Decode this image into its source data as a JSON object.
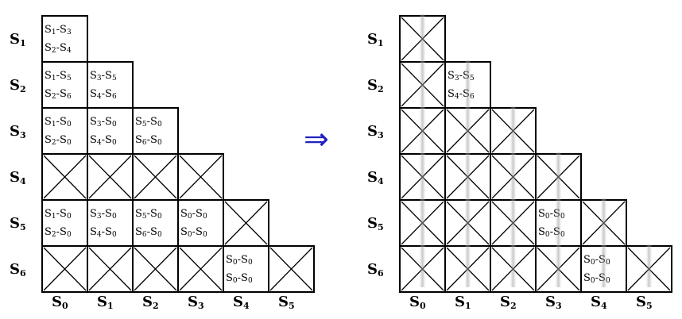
{
  "arrow_symbol": "⇒",
  "left_matrix": {
    "row_labels": [
      [
        "S",
        "1"
      ],
      [
        "S",
        "2"
      ],
      [
        "S",
        "3"
      ],
      [
        "S",
        "4"
      ],
      [
        "S",
        "5"
      ],
      [
        "S",
        "6"
      ]
    ],
    "col_labels": [
      [
        "S",
        "0"
      ],
      [
        "S",
        "1"
      ],
      [
        "S",
        "2"
      ],
      [
        "S",
        "3"
      ],
      [
        "S",
        "4"
      ],
      [
        "S",
        "5"
      ]
    ],
    "cells": [
      [
        {
          "l1": [
            [
              "S",
              "1"
            ],
            [
              "-S",
              "3"
            ]
          ],
          "l2": [
            [
              "S",
              "2"
            ],
            [
              "-S",
              "4"
            ]
          ]
        }
      ],
      [
        {
          "l1": [
            [
              "S",
              "1"
            ],
            [
              "-S",
              "5"
            ]
          ],
          "l2": [
            [
              "S",
              "2"
            ],
            [
              "-S",
              "6"
            ]
          ]
        },
        {
          "l1": [
            [
              "S",
              "3"
            ],
            [
              "-S",
              "5"
            ]
          ],
          "l2": [
            [
              "S",
              "4"
            ],
            [
              "-S",
              "6"
            ]
          ]
        }
      ],
      [
        {
          "l1": [
            [
              "S",
              "1"
            ],
            [
              "-S",
              "0"
            ]
          ],
          "l2": [
            [
              "S",
              "2"
            ],
            [
              "-S",
              "0"
            ]
          ]
        },
        {
          "l1": [
            [
              "S",
              "3"
            ],
            [
              "-S",
              "0"
            ]
          ],
          "l2": [
            [
              "S",
              "4"
            ],
            [
              "-S",
              "0"
            ]
          ]
        },
        {
          "l1": [
            [
              "S",
              "5"
            ],
            [
              "-S",
              "0"
            ]
          ],
          "l2": [
            [
              "S",
              "6"
            ],
            [
              "-S",
              "0"
            ]
          ]
        }
      ],
      [
        "X",
        "X",
        "X",
        "X"
      ],
      [
        {
          "l1": [
            [
              "S",
              "1"
            ],
            [
              "-S",
              "0"
            ]
          ],
          "l2": [
            [
              "S",
              "2"
            ],
            [
              "-S",
              "0"
            ]
          ]
        },
        {
          "l1": [
            [
              "S",
              "3"
            ],
            [
              "-S",
              "0"
            ]
          ],
          "l2": [
            [
              "S",
              "4"
            ],
            [
              "-S",
              "0"
            ]
          ]
        },
        {
          "l1": [
            [
              "S",
              "5"
            ],
            [
              "-S",
              "0"
            ]
          ],
          "l2": [
            [
              "S",
              "6"
            ],
            [
              "-S",
              "0"
            ]
          ]
        },
        {
          "l1": [
            [
              "S",
              "0"
            ],
            [
              "-S",
              "0"
            ]
          ],
          "l2": [
            [
              "S",
              "0"
            ],
            [
              "-S",
              "0"
            ]
          ]
        },
        "X"
      ],
      [
        "X",
        "X",
        "X",
        "X",
        {
          "l1": [
            [
              "S",
              "0"
            ],
            [
              "-S",
              "0"
            ]
          ],
          "l2": [
            [
              "S",
              "0"
            ],
            [
              "-S",
              "0"
            ]
          ]
        },
        "X"
      ]
    ]
  },
  "right_matrix": {
    "row_labels": [
      [
        "S",
        "1"
      ],
      [
        "S",
        "2"
      ],
      [
        "S",
        "3"
      ],
      [
        "S",
        "4"
      ],
      [
        "S",
        "5"
      ],
      [
        "S",
        "6"
      ]
    ],
    "col_labels": [
      [
        "S",
        "0"
      ],
      [
        "S",
        "1"
      ],
      [
        "S",
        "2"
      ],
      [
        "S",
        "3"
      ],
      [
        "S",
        "4"
      ],
      [
        "S",
        "5"
      ]
    ],
    "cells": [
      [
        "X"
      ],
      [
        "X",
        {
          "l1": [
            [
              "S",
              "3"
            ],
            [
              "-S",
              "5"
            ]
          ],
          "l2": [
            [
              "S",
              "4"
            ],
            [
              "-S",
              "6"
            ]
          ]
        }
      ],
      [
        "X",
        "X",
        "X"
      ],
      [
        "X",
        "X",
        "X",
        "X"
      ],
      [
        "X",
        "X",
        "X",
        {
          "l1": [
            [
              "S",
              "0"
            ],
            [
              "-S",
              "0"
            ]
          ],
          "l2": [
            [
              "S",
              "0"
            ],
            [
              "-S",
              "0"
            ]
          ]
        },
        "X"
      ],
      [
        "X",
        "X",
        "X",
        "X",
        {
          "l1": [
            [
              "S",
              "0"
            ],
            [
              "-S",
              "0"
            ]
          ],
          "l2": [
            [
              "S",
              "0"
            ],
            [
              "-S",
              "0"
            ]
          ]
        },
        "X"
      ]
    ]
  }
}
